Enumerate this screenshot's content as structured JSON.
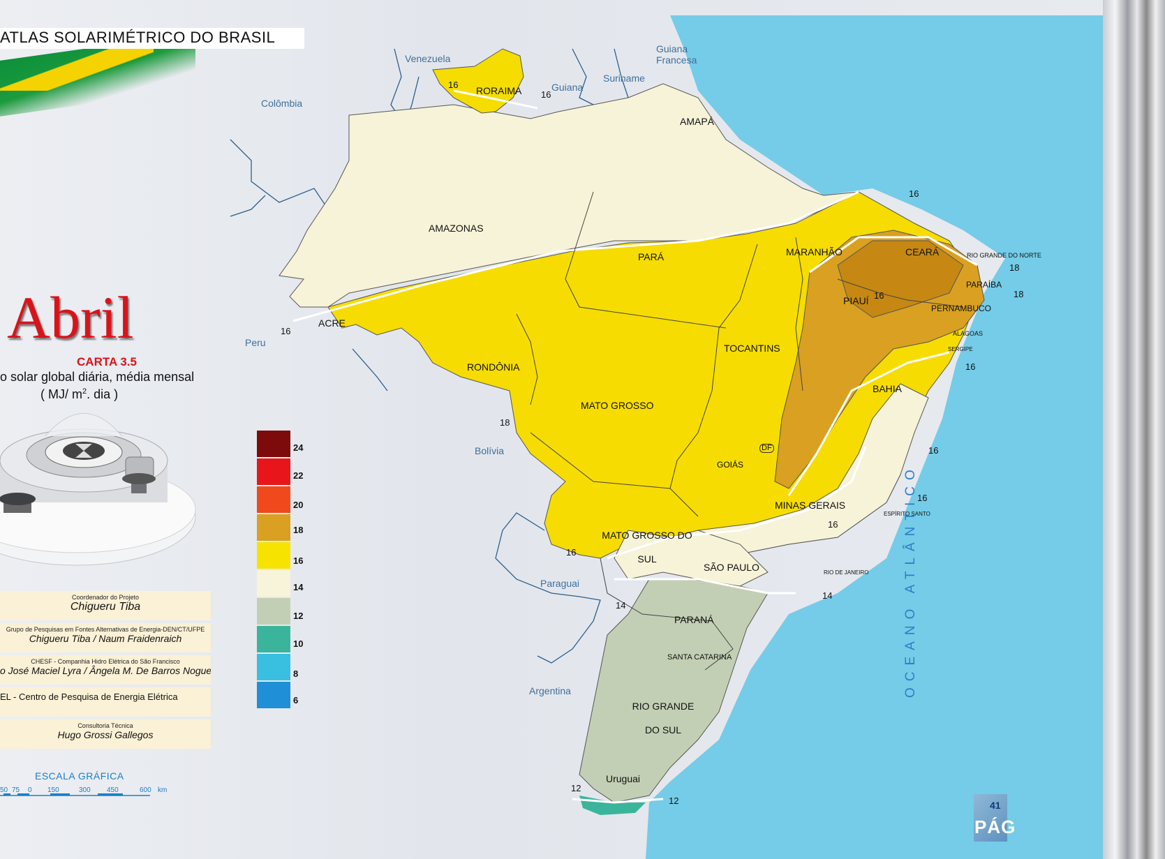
{
  "header": {
    "title": "ATLAS  SOLARIMÉTRICO DO  BRASIL"
  },
  "chart": {
    "month": "Abril",
    "carta": "CARTA 3.5",
    "subtitle": "o solar global diária, média mensal",
    "unit_prefix": "( MJ/ m",
    "unit_sup": "2",
    "unit_suffix": ". dia )"
  },
  "legend": [
    {
      "value": "24",
      "color": "#7e0b0b"
    },
    {
      "value": "22",
      "color": "#e8161a"
    },
    {
      "value": "20",
      "color": "#f04a1c"
    },
    {
      "value": "18",
      "color": "#d9a021"
    },
    {
      "value": "16",
      "color": "#f7e300"
    },
    {
      "value": "14",
      "color": "#f8f4d9"
    },
    {
      "value": "12",
      "color": "#c3cfb4"
    },
    {
      "value": "10",
      "color": "#3ab59c"
    },
    {
      "value": "8",
      "color": "#39bfe0"
    },
    {
      "value": "6",
      "color": "#1f8fd8"
    }
  ],
  "credits": [
    {
      "role": "Coordenador do Projeto",
      "name": "Chigueru  Tiba"
    },
    {
      "role": "Grupo de Pesquisas em Fontes Alternativas de Energia-DEN/CT/UFPE",
      "name": "Chigueru Tiba /  Naum  Fraidenraich"
    },
    {
      "role": "CHESF  -  Companhia Hidro Elétrica do São Francisco",
      "name": "o José Maciel Lyra / Ângela M. De Barros Nogueira"
    },
    {
      "role": "",
      "name": "EL - Centro de Pesquisa de Energia Elétrica"
    },
    {
      "role": "Consultoria Técnica",
      "name": "Hugo  Grossi Gallegos"
    }
  ],
  "scale": {
    "title": "ESCALA  GRÁFICA",
    "ticks": [
      "50",
      "75",
      "0",
      "150",
      "300",
      "450",
      "600"
    ],
    "unit": "km"
  },
  "map": {
    "states": [
      "RORAIMA",
      "AMAPÁ",
      "AMAZONAS",
      "PARÁ",
      "MARANHÃO",
      "CEARÁ",
      "RIO GRANDE DO NORTE",
      "PARAÍBA",
      "PERNAMBUCO",
      "ALAGOAS",
      "SERGIPE",
      "PIAUÍ",
      "ACRE",
      "RONDÔNIA",
      "TOCANTINS",
      "BAHIA",
      "MATO  GROSSO",
      "GOIÁS",
      "DF",
      "MINAS  GERAIS",
      "ESPÍRITO SANTO",
      "MATO  GROSSO DO SUL",
      "SÃO  PAULO",
      "RIO DE JANEIRO",
      "PARANÁ",
      "SANTA CATARINA",
      "RIO GRANDE DO  SUL"
    ],
    "neighbors": [
      "Venezuela",
      "Guiana",
      "Suriname",
      "Guiana Francesa",
      "Colômbia",
      "Peru",
      "Bolívia",
      "Paraguai",
      "Argentina",
      "Uruguai"
    ],
    "ocean": "OCEANO  ATLÂNTICO",
    "isolines": [
      "16",
      "16",
      "16",
      "18",
      "18",
      "16",
      "16",
      "16",
      "16",
      "16",
      "16",
      "18",
      "16",
      "14",
      "14",
      "12",
      "12"
    ]
  },
  "page": {
    "number": "41",
    "label": "PÁG"
  }
}
